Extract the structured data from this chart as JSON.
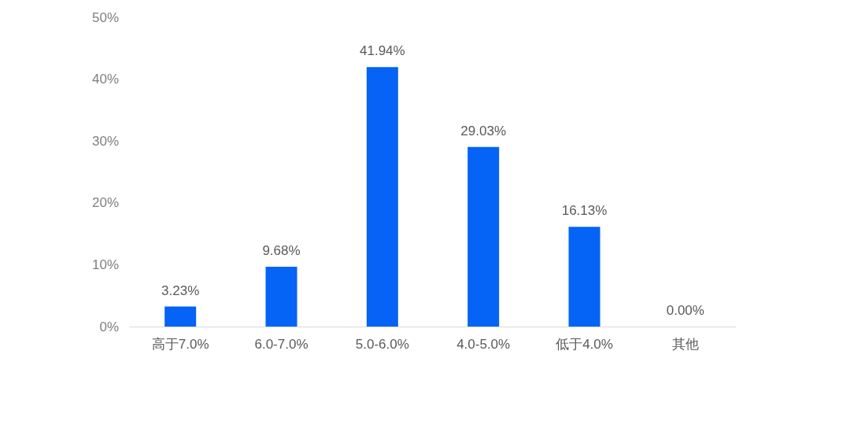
{
  "chart_data": {
    "type": "bar",
    "categories": [
      "高于7.0%",
      "6.0-7.0%",
      "5.0-6.0%",
      "4.0-5.0%",
      "低于4.0%",
      "其他"
    ],
    "values": [
      3.23,
      9.68,
      41.94,
      29.03,
      16.13,
      0.0
    ],
    "value_labels": [
      "3.23%",
      "9.68%",
      "41.94%",
      "29.03%",
      "16.13%",
      "0.00%"
    ],
    "color": "#0563f5",
    "ylim": [
      0,
      50
    ],
    "yticks": [
      {
        "value": 0,
        "label": "0%"
      },
      {
        "value": 10,
        "label": "10%"
      },
      {
        "value": 20,
        "label": "20%"
      },
      {
        "value": 30,
        "label": "30%"
      },
      {
        "value": 40,
        "label": "40%"
      },
      {
        "value": 50,
        "label": "50%"
      }
    ],
    "grid": false
  }
}
